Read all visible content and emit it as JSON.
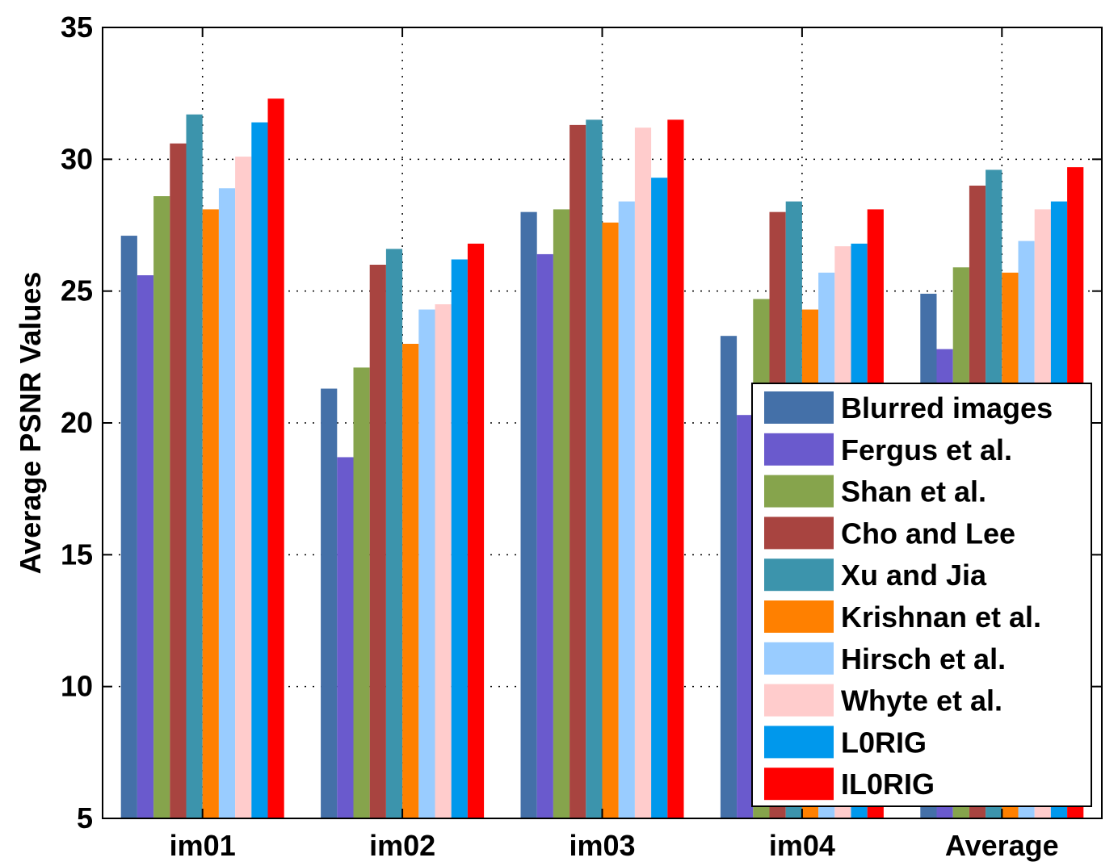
{
  "chart_data": {
    "type": "bar",
    "ylabel": "Average PSNR Values",
    "xlabel": "",
    "ylim": [
      5,
      35
    ],
    "yticks": [
      5,
      10,
      15,
      20,
      25,
      30,
      35
    ],
    "grid": true,
    "legend_position": "lower-right",
    "categories": [
      "im01",
      "im02",
      "im03",
      "im04",
      "Average"
    ],
    "series": [
      {
        "name": "Blurred images",
        "color": "#4470a8",
        "values": [
          27.1,
          21.3,
          28.0,
          23.3,
          24.9
        ]
      },
      {
        "name": "Fergus et al.",
        "color": "#6a5acd",
        "values": [
          25.6,
          18.7,
          26.4,
          20.3,
          22.8
        ]
      },
      {
        "name": "Shan et al.",
        "color": "#86a44c",
        "values": [
          28.6,
          22.1,
          28.1,
          24.7,
          25.9
        ]
      },
      {
        "name": "Cho and Lee",
        "color": "#a84440",
        "values": [
          30.6,
          26.0,
          31.3,
          28.0,
          29.0
        ]
      },
      {
        "name": "Xu and Jia",
        "color": "#3c94ac",
        "values": [
          31.7,
          26.6,
          31.5,
          28.4,
          29.6
        ]
      },
      {
        "name": "Krishnan et al.",
        "color": "#ff8000",
        "values": [
          28.1,
          23.0,
          27.6,
          24.3,
          25.7
        ]
      },
      {
        "name": "Hirsch et al.",
        "color": "#99ccff",
        "values": [
          28.9,
          24.3,
          28.4,
          25.7,
          26.9
        ]
      },
      {
        "name": "Whyte et al.",
        "color": "#ffcccc",
        "values": [
          30.1,
          24.5,
          31.2,
          26.7,
          28.1
        ]
      },
      {
        "name": "L0RIG",
        "color": "#0098ec",
        "values": [
          31.4,
          26.2,
          29.3,
          26.8,
          28.4
        ]
      },
      {
        "name": "IL0RIG",
        "color": "#ff0000",
        "values": [
          32.3,
          26.8,
          31.5,
          28.1,
          29.7
        ]
      }
    ]
  }
}
